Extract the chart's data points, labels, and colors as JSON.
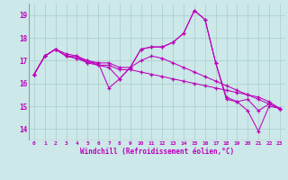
{
  "xlabel": "Windchill (Refroidissement éolien,°C)",
  "xlim": [
    -0.5,
    23.5
  ],
  "ylim": [
    13.5,
    19.5
  ],
  "yticks": [
    14,
    15,
    16,
    17,
    18,
    19
  ],
  "xticks": [
    0,
    1,
    2,
    3,
    4,
    5,
    6,
    7,
    8,
    9,
    10,
    11,
    12,
    13,
    14,
    15,
    16,
    17,
    18,
    19,
    20,
    21,
    22,
    23
  ],
  "bg_color": "#cce8e8",
  "line_color": "#bb00bb",
  "grid_color": "#aacccc",
  "series": [
    [
      16.4,
      17.2,
      17.5,
      17.2,
      17.1,
      16.9,
      16.8,
      16.7,
      16.2,
      16.7,
      17.5,
      17.6,
      17.6,
      17.8,
      18.2,
      19.2,
      18.8,
      16.9,
      15.3,
      15.2,
      15.3,
      14.8,
      15.1,
      14.9
    ],
    [
      16.4,
      17.2,
      17.5,
      17.2,
      17.2,
      16.9,
      16.9,
      16.9,
      16.7,
      16.7,
      17.0,
      17.2,
      17.1,
      16.9,
      16.7,
      16.5,
      16.3,
      16.1,
      15.9,
      15.7,
      15.5,
      15.3,
      15.1,
      14.9
    ],
    [
      16.4,
      17.2,
      17.5,
      17.3,
      17.2,
      17.0,
      16.8,
      16.8,
      16.6,
      16.6,
      16.5,
      16.4,
      16.3,
      16.2,
      16.1,
      16.0,
      15.9,
      15.8,
      15.7,
      15.6,
      15.5,
      15.4,
      15.2,
      14.9
    ],
    [
      16.4,
      17.2,
      17.5,
      17.2,
      17.1,
      17.0,
      16.9,
      15.8,
      16.2,
      16.7,
      17.5,
      17.6,
      17.6,
      17.8,
      18.2,
      19.2,
      18.8,
      16.9,
      15.4,
      15.2,
      14.8,
      13.9,
      15.0,
      14.9
    ]
  ]
}
